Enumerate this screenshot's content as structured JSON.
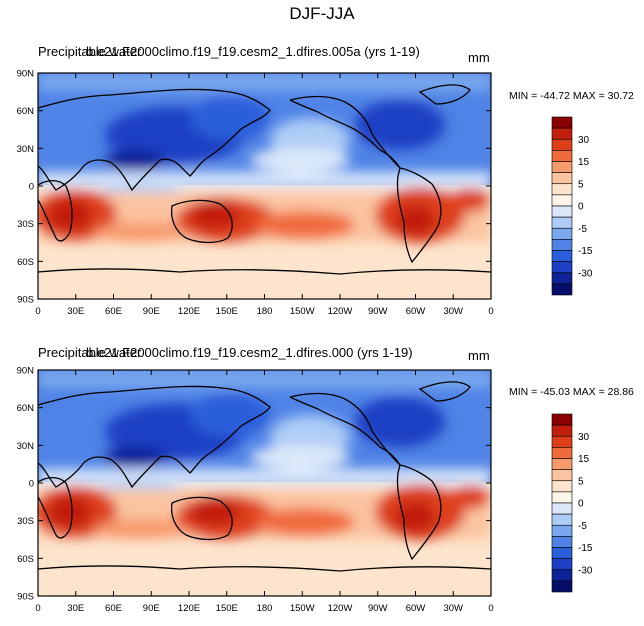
{
  "title": "DJF-JJA",
  "colormap": {
    "labels": [
      "30",
      "15",
      "5",
      "0",
      "-5",
      "-15",
      "-30"
    ],
    "colors": [
      "#8b0000",
      "#c21e0e",
      "#de3f1a",
      "#f06a3c",
      "#f79a6c",
      "#fbc4a0",
      "#fde4cc",
      "#fdf5ea",
      "#dbe8fa",
      "#aecdf6",
      "#7aa8ee",
      "#4f83e6",
      "#2a5fdb",
      "#1c3fc4",
      "#0d2296",
      "#050f6a"
    ]
  },
  "panels": [
    {
      "title": "Precipitable water",
      "case": "b.e21.F2000climo.f19_f19.cesm2_1.dfires.005a (yrs 1-19)",
      "units": "mm",
      "minmax": "MIN = -44.72 MAX =  30.72",
      "lat_ticks": [
        "90N",
        "60N",
        "30N",
        "0",
        "30S",
        "60S",
        "90S"
      ],
      "lon_ticks": [
        "0",
        "30E",
        "60E",
        "90E",
        "120E",
        "150E",
        "180",
        "150W",
        "120W",
        "90W",
        "60W",
        "30W",
        "0"
      ]
    },
    {
      "title": "Precipitable water",
      "case": "b.e21.F2000climo.f19_f19.cesm2_1.dfires.000 (yrs 1-19)",
      "units": "mm",
      "minmax": "MIN = -45.03 MAX =  28.86",
      "lat_ticks": [
        "90N",
        "60N",
        "30N",
        "0",
        "30S",
        "60S",
        "90S"
      ],
      "lon_ticks": [
        "0",
        "30E",
        "60E",
        "90E",
        "120E",
        "150E",
        "180",
        "150W",
        "120W",
        "90W",
        "60W",
        "30W",
        "0"
      ]
    }
  ]
}
